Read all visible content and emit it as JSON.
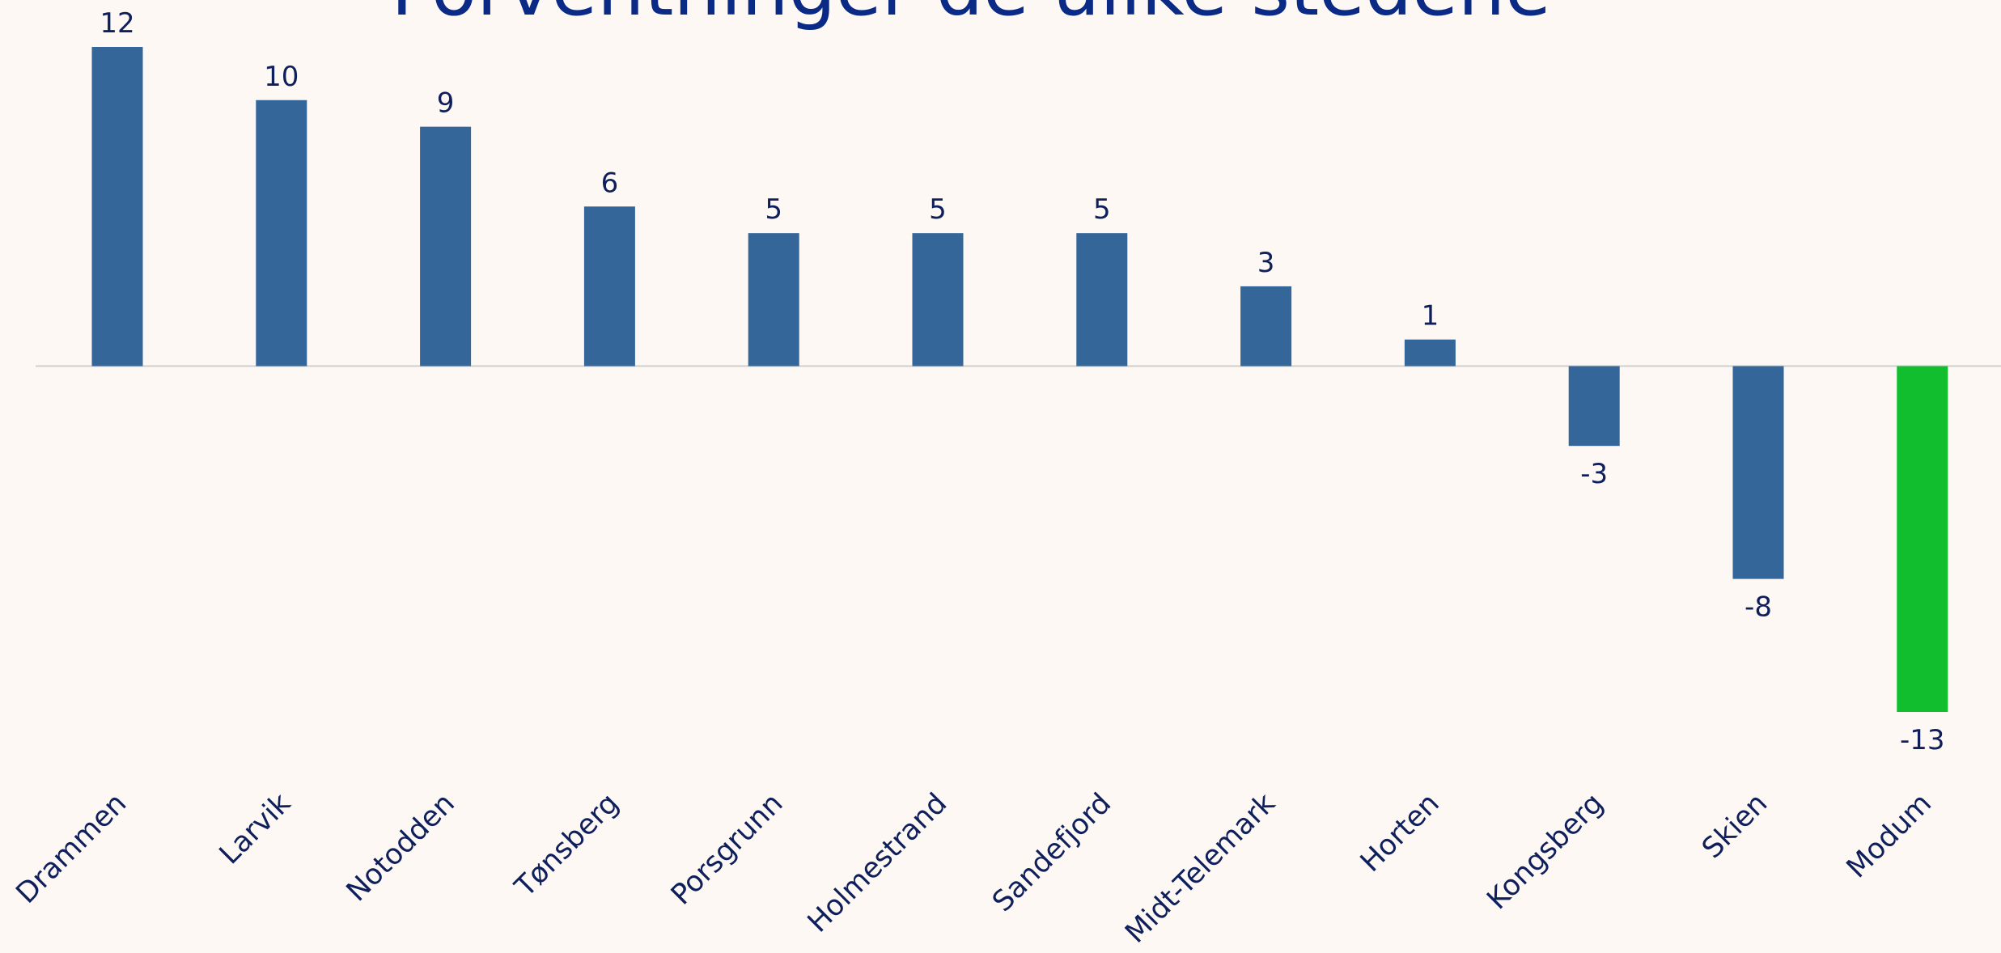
{
  "chart_data": {
    "type": "bar",
    "title": "Forventninger de ulike stedene",
    "categories": [
      "Drammen",
      "Larvik",
      "Notodden",
      "Tønsberg",
      "Porsgrunn",
      "Holmestrand",
      "Sandefjord",
      "Midt-Telemark",
      "Horten",
      "Kongsberg",
      "Skien",
      "Modum"
    ],
    "values": [
      12,
      10,
      9,
      6,
      5,
      5,
      5,
      3,
      1,
      -3,
      -8,
      -13
    ],
    "colors": [
      "#346699",
      "#346699",
      "#346699",
      "#346699",
      "#346699",
      "#346699",
      "#346699",
      "#346699",
      "#346699",
      "#346699",
      "#346699",
      "#11bf2e"
    ],
    "ylim": [
      -13,
      12
    ]
  }
}
